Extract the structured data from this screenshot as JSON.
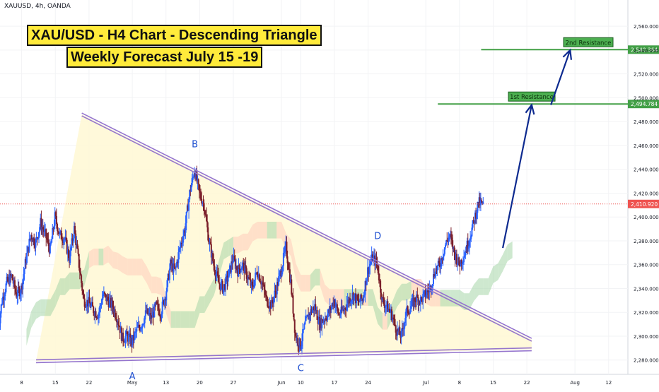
{
  "symbol_line": "XAUUSD, 4h, OANDA",
  "titles": {
    "line1": "XAU/USD - H4 Chart - Descending Triangle",
    "line2": "Weekly Forecast July 15 -19"
  },
  "colors": {
    "up": "#2962ff",
    "down": "#7b1f2a",
    "trendline": "#9575cd",
    "resistance": "#43a047",
    "arrow": "#0d2a8f",
    "cloud_bull": "#a5d6a7",
    "cloud_bear": "#ffccbc",
    "triangle_fill": "#fff8d6",
    "price_tag": "#ef5350"
  },
  "chart_data": {
    "type": "candlestick",
    "timeframe": "4h",
    "pattern": "Descending Triangle",
    "ylim": [
      2268,
      2582
    ],
    "yticks": [
      2280,
      2300,
      2320,
      2340,
      2360,
      2380,
      2400,
      2420,
      2440,
      2460,
      2480,
      2500,
      2520,
      2540,
      2560
    ],
    "ytick_labels": [
      "2,280.000",
      "2,300.000",
      "2,320.000",
      "2,340.000",
      "2,360.000",
      "2,380.000",
      "2,400.000",
      "2,420.000",
      "2,440.000",
      "2,460.000",
      "2,480.000",
      "2,500.000",
      "2,520.000",
      "2,540.000",
      "2,560.000"
    ],
    "x_ticks": [
      {
        "day": 8,
        "label": "8"
      },
      {
        "day": 15,
        "label": "15"
      },
      {
        "day": 22,
        "label": "22"
      },
      {
        "day": 31,
        "label": "May"
      },
      {
        "day": 38,
        "label": "13"
      },
      {
        "day": 45,
        "label": "20"
      },
      {
        "day": 52,
        "label": "27"
      },
      {
        "day": 62,
        "label": "Jun"
      },
      {
        "day": 66,
        "label": "10"
      },
      {
        "day": 73,
        "label": "17"
      },
      {
        "day": 80,
        "label": "24"
      },
      {
        "day": 92,
        "label": "Jul"
      },
      {
        "day": 99,
        "label": "8"
      },
      {
        "day": 106,
        "label": "15"
      },
      {
        "day": 113,
        "label": "22"
      },
      {
        "day": 123,
        "label": "Aug"
      },
      {
        "day": 130,
        "label": "12"
      }
    ],
    "x_units": "days (1 = 1 April)",
    "last_price": {
      "value": 2410.92,
      "label": "2,410.920"
    },
    "levels": [
      {
        "name": "1st Resistance",
        "value": 2494.784,
        "label": "2,494.784"
      },
      {
        "name": "2nd Resistance",
        "value": 2540.364,
        "label": "2,540.364"
      }
    ],
    "trendlines": [
      {
        "name": "upper",
        "from": [
          20.5,
          2486
        ],
        "to": [
          114,
          2297
        ]
      },
      {
        "name": "lower",
        "from": [
          11,
          2279
        ],
        "to": [
          114,
          2289
        ]
      }
    ],
    "points": [
      {
        "label": "A",
        "day": 31,
        "value": 2277
      },
      {
        "label": "B",
        "day": 44,
        "value": 2449
      },
      {
        "label": "C",
        "day": 66,
        "value": 2286
      },
      {
        "label": "D",
        "day": 82,
        "value": 2372
      }
    ],
    "projection": [
      [
        108,
        2374
      ],
      [
        114,
        2494
      ]
    ],
    "projection2": [
      [
        118,
        2494
      ],
      [
        122,
        2540
      ]
    ],
    "series": [
      {
        "name": "close",
        "points": [
          [
            3,
            2300
          ],
          [
            4,
            2330
          ],
          [
            5,
            2345
          ],
          [
            6,
            2350
          ],
          [
            7,
            2335
          ],
          [
            8,
            2340
          ],
          [
            9,
            2365
          ],
          [
            10,
            2385
          ],
          [
            11,
            2378
          ],
          [
            12,
            2395
          ],
          [
            13,
            2385
          ],
          [
            14,
            2372
          ],
          [
            15,
            2400
          ],
          [
            16,
            2385
          ],
          [
            17,
            2382
          ],
          [
            18,
            2365
          ],
          [
            19,
            2390
          ],
          [
            20,
            2360
          ],
          [
            21,
            2330
          ],
          [
            22,
            2328
          ],
          [
            23,
            2322
          ],
          [
            24,
            2318
          ],
          [
            25,
            2335
          ],
          [
            26,
            2330
          ],
          [
            27,
            2325
          ],
          [
            28,
            2315
          ],
          [
            29,
            2298
          ],
          [
            30,
            2300
          ],
          [
            31,
            2295
          ],
          [
            32,
            2305
          ],
          [
            33,
            2310
          ],
          [
            34,
            2320
          ],
          [
            35,
            2315
          ],
          [
            36,
            2325
          ],
          [
            37,
            2320
          ],
          [
            38,
            2335
          ],
          [
            39,
            2360
          ],
          [
            40,
            2355
          ],
          [
            41,
            2375
          ],
          [
            42,
            2390
          ],
          [
            43,
            2420
          ],
          [
            44,
            2440
          ],
          [
            45,
            2420
          ],
          [
            46,
            2410
          ],
          [
            47,
            2380
          ],
          [
            48,
            2360
          ],
          [
            49,
            2345
          ],
          [
            50,
            2340
          ],
          [
            51,
            2350
          ],
          [
            52,
            2365
          ],
          [
            53,
            2355
          ],
          [
            54,
            2360
          ],
          [
            55,
            2350
          ],
          [
            56,
            2340
          ],
          [
            57,
            2355
          ],
          [
            58,
            2345
          ],
          [
            59,
            2330
          ],
          [
            60,
            2326
          ],
          [
            61,
            2340
          ],
          [
            62,
            2355
          ],
          [
            63,
            2375
          ],
          [
            64,
            2345
          ],
          [
            65,
            2300
          ],
          [
            66,
            2292
          ],
          [
            67,
            2310
          ],
          [
            68,
            2320
          ],
          [
            69,
            2325
          ],
          [
            70,
            2310
          ],
          [
            71,
            2315
          ],
          [
            72,
            2320
          ],
          [
            73,
            2330
          ],
          [
            74,
            2318
          ],
          [
            75,
            2322
          ],
          [
            76,
            2330
          ],
          [
            77,
            2335
          ],
          [
            78,
            2328
          ],
          [
            79,
            2332
          ],
          [
            80,
            2355
          ],
          [
            81,
            2366
          ],
          [
            82,
            2360
          ],
          [
            83,
            2330
          ],
          [
            84,
            2325
          ],
          [
            85,
            2318
          ],
          [
            86,
            2305
          ],
          [
            87,
            2300
          ],
          [
            88,
            2320
          ],
          [
            89,
            2325
          ],
          [
            90,
            2332
          ],
          [
            91,
            2330
          ],
          [
            92,
            2335
          ],
          [
            93,
            2340
          ],
          [
            94,
            2355
          ],
          [
            95,
            2360
          ],
          [
            96,
            2375
          ],
          [
            97,
            2385
          ],
          [
            98,
            2370
          ],
          [
            99,
            2360
          ],
          [
            100,
            2368
          ],
          [
            101,
            2380
          ],
          [
            102,
            2395
          ],
          [
            103,
            2412
          ],
          [
            104,
            2410
          ]
        ]
      }
    ]
  }
}
